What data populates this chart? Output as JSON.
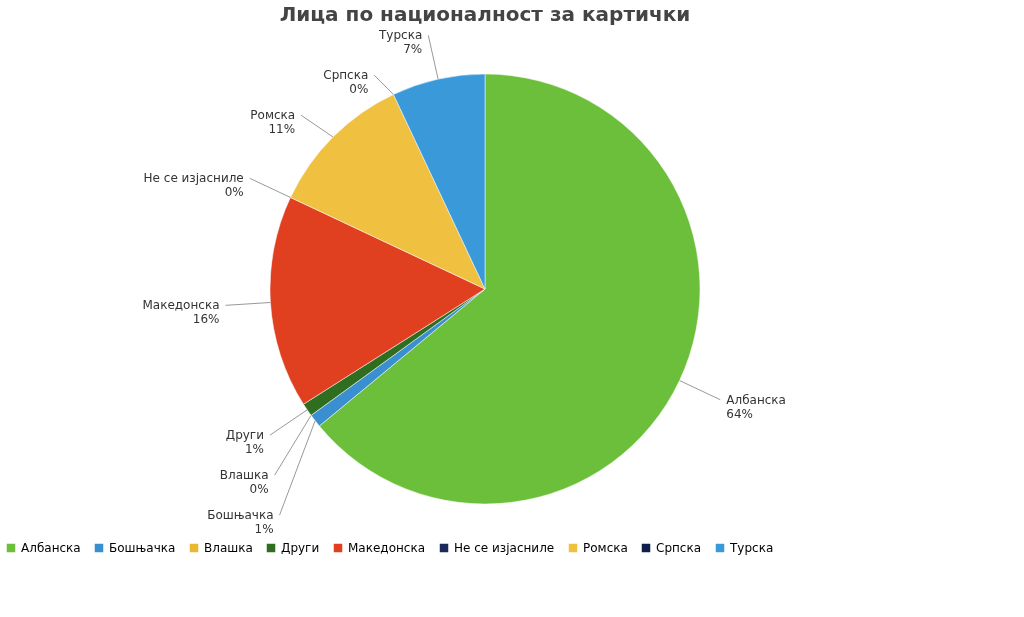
{
  "chart_data": {
    "type": "pie",
    "title": "Лица по националност за картички",
    "categories": [
      "Албанска",
      "Бошњачка",
      "Влашка",
      "Други",
      "Македонска",
      "Не се изјасниле",
      "Ромска",
      "Српска",
      "Турска"
    ],
    "values": [
      64,
      1,
      0,
      1,
      16,
      0,
      11,
      0,
      7
    ],
    "value_labels": [
      "64%",
      "1%",
      "0%",
      "1%",
      "16%",
      "0%",
      "11%",
      "0%",
      "7%"
    ],
    "colors": [
      "#6cbf3a",
      "#3a8fd0",
      "#e8b830",
      "#2e6e1e",
      "#e04020",
      "#1a2a5a",
      "#f0c040",
      "#0d1f4a",
      "#3a9ad9"
    ],
    "legend": "bottom"
  }
}
